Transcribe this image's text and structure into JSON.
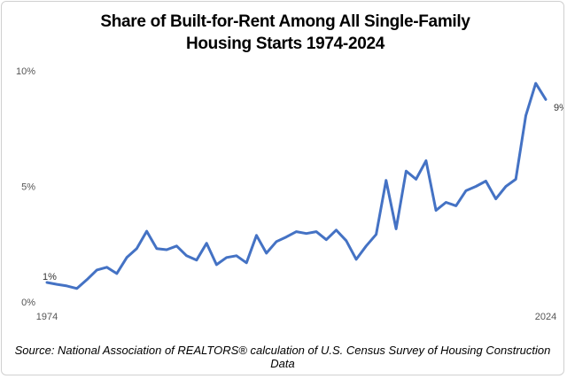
{
  "chart_data": {
    "type": "line",
    "title": "Share of Built-for-Rent Among All Single-Family Housing Starts 1974-2024",
    "source": "Source: National Association of REALTORS® calculation of U.S. Census Survey of Housing Construction Data",
    "x": [
      1974,
      1975,
      1976,
      1977,
      1978,
      1979,
      1980,
      1981,
      1982,
      1983,
      1984,
      1985,
      1986,
      1987,
      1988,
      1989,
      1990,
      1991,
      1992,
      1993,
      1994,
      1995,
      1996,
      1997,
      1998,
      1999,
      2000,
      2001,
      2002,
      2003,
      2004,
      2005,
      2006,
      2007,
      2008,
      2009,
      2010,
      2011,
      2012,
      2013,
      2014,
      2015,
      2016,
      2017,
      2018,
      2019,
      2020,
      2021,
      2022,
      2023,
      2024
    ],
    "values": [
      0.88,
      0.8,
      0.73,
      0.62,
      1.0,
      1.42,
      1.54,
      1.27,
      1.96,
      2.35,
      3.1,
      2.35,
      2.3,
      2.46,
      2.04,
      1.85,
      2.58,
      1.65,
      1.96,
      2.04,
      1.73,
      2.92,
      2.15,
      2.65,
      2.85,
      3.08,
      3.0,
      3.08,
      2.73,
      3.15,
      2.69,
      1.88,
      2.46,
      2.96,
      5.3,
      3.2,
      5.7,
      5.35,
      6.15,
      4.0,
      4.35,
      4.2,
      4.85,
      5.04,
      5.27,
      4.5,
      5.04,
      5.35,
      8.1,
      9.5,
      8.8
    ],
    "value_labels": [
      "1%",
      null,
      null,
      null,
      null,
      null,
      null,
      null,
      null,
      null,
      null,
      null,
      null,
      null,
      null,
      null,
      null,
      null,
      null,
      null,
      null,
      null,
      null,
      null,
      null,
      null,
      null,
      null,
      null,
      null,
      null,
      null,
      null,
      null,
      null,
      null,
      null,
      null,
      null,
      null,
      null,
      null,
      null,
      null,
      null,
      null,
      null,
      null,
      null,
      null,
      "9%"
    ],
    "color": "#4472c4",
    "xlim": [
      1974,
      2024
    ],
    "xticks": [
      1974,
      2024
    ],
    "ylim": [
      0,
      10
    ],
    "yticks": [
      {
        "value": 0,
        "label": "0%"
      },
      {
        "value": 5,
        "label": "5%"
      },
      {
        "value": 10,
        "label": "10%"
      }
    ],
    "grid": false
  }
}
